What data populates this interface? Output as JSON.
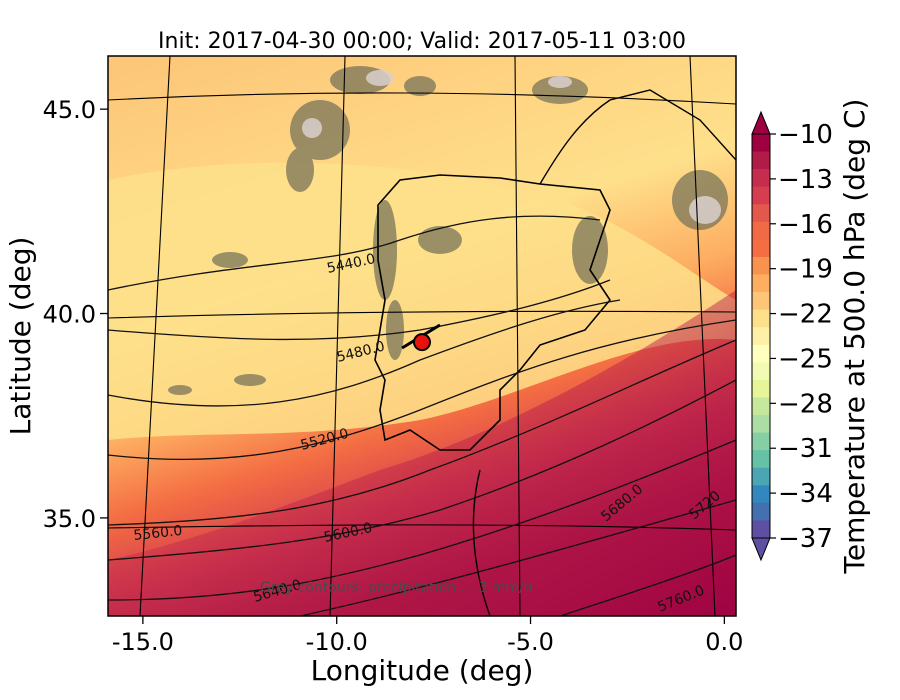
{
  "chart_data": {
    "type": "heatmap",
    "title": "Init: 2017-04-30 00:00; Valid: 2017-05-11 03:00",
    "xlabel": "Longitude (deg)",
    "ylabel": "Latitude (deg)",
    "xlim": [
      -15.9,
      0.3
    ],
    "ylim": [
      32.6,
      46.3
    ],
    "x_ticks": [
      {
        "value": -15.0,
        "label": "-15.0"
      },
      {
        "value": -10.0,
        "label": "-10.0"
      },
      {
        "value": -5.0,
        "label": "-5.0"
      },
      {
        "value": 0.0,
        "label": "0.0"
      }
    ],
    "y_ticks": [
      {
        "value": 35.0,
        "label": "35.0"
      },
      {
        "value": 40.0,
        "label": "40.0"
      },
      {
        "value": 45.0,
        "label": "45.0"
      }
    ],
    "colorbar": {
      "label": "Temperature at 500.0 hPa (deg C)",
      "range": [
        -37,
        -10
      ],
      "ticks": [
        "−10",
        "−13",
        "−16",
        "−19",
        "−22",
        "−25",
        "−28",
        "−31",
        "−34",
        "−37"
      ],
      "colors": [
        "#9e0142",
        "#b01c47",
        "#c42e4c",
        "#d53e4f",
        "#e2584c",
        "#f06b45",
        "#f46d43",
        "#f8924f",
        "#fdae61",
        "#fdc578",
        "#fee08b",
        "#fef0a7",
        "#ffffbf",
        "#f3fab3",
        "#e6f598",
        "#c6e89c",
        "#abdda4",
        "#86cea4",
        "#66c2a5",
        "#4ca5b2",
        "#3288bd",
        "#4470b0",
        "#5e4fa2"
      ]
    },
    "geopotential_height_contours": [
      {
        "value": "5440.0"
      },
      {
        "value": "5480.0"
      },
      {
        "value": "5520.0"
      },
      {
        "value": "5560.0"
      },
      {
        "value": "5600.0"
      },
      {
        "value": "5640.0"
      },
      {
        "value": "5680.0"
      },
      {
        "value": "5720"
      },
      {
        "value": "5760.0"
      }
    ],
    "marker": {
      "lon": -7.8,
      "lat": 39.3,
      "color": "#e8120c"
    },
    "annotation": "Grey contours: precipitation ... 3 mm/h"
  }
}
